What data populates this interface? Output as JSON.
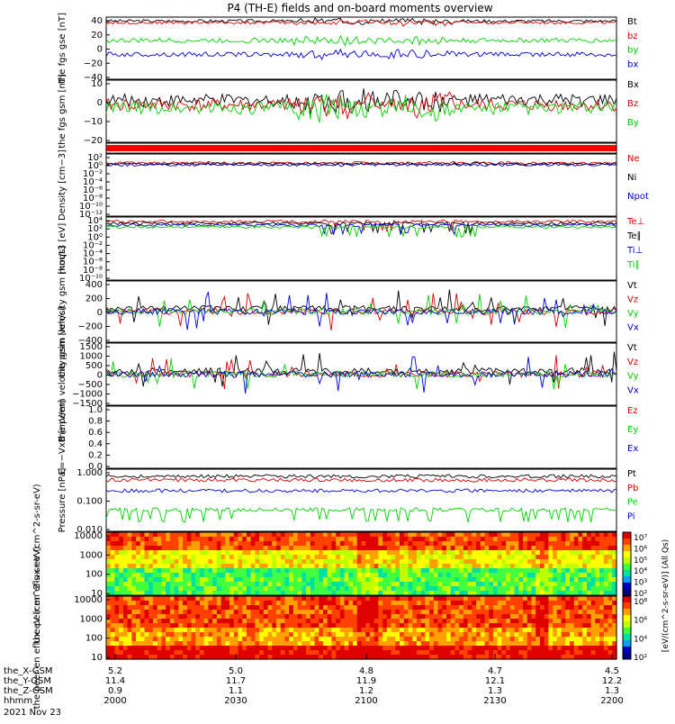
{
  "title": "P4 (TH-E) fields and on-board moments overview",
  "colors": {
    "black": "#000000",
    "red": "#d40000",
    "green": "#00d000",
    "blue": "#0000d0"
  },
  "chart_data": [
    {
      "type": "line",
      "ylabel": "the fgs gse [nT]",
      "ylim": [
        -40,
        40
      ],
      "yticks": [
        "40",
        "20",
        "0",
        "−20",
        "−40"
      ],
      "legend": [
        "Bt",
        "bz",
        "by",
        "bx"
      ],
      "series": [
        {
          "name": "Bt",
          "color": "black",
          "level": 35,
          "amp": 2
        },
        {
          "name": "bz",
          "color": "red",
          "level": 33,
          "amp": 2
        },
        {
          "name": "by",
          "color": "green",
          "level": 10,
          "amp": 3
        },
        {
          "name": "bx",
          "color": "blue",
          "level": -8,
          "amp": 3
        }
      ]
    },
    {
      "type": "line",
      "ylabel": "the fgs gsm [nT]",
      "ylim": [
        -25,
        15
      ],
      "yticks": [
        "10",
        "0",
        "−10",
        "−20"
      ],
      "legend": [
        "Bx",
        "Bz",
        "By"
      ],
      "series": [
        {
          "name": "Bx",
          "color": "black",
          "level": 2,
          "amp": 4
        },
        {
          "name": "Bz",
          "color": "red",
          "level": -1,
          "amp": 4
        },
        {
          "name": "By",
          "color": "green",
          "level": -3,
          "amp": 4
        }
      ]
    },
    {
      "type": "bar_strip",
      "note": "red quality flag bar"
    },
    {
      "type": "line",
      "ylabel": "Density [cm−3]",
      "scale": "log",
      "yticks": [
        "10²",
        "10⁰",
        "10⁻²",
        "10⁻⁴",
        "10⁻⁶",
        "10⁻⁸",
        "10⁻¹⁰",
        "10⁻¹²"
      ],
      "legend": [
        "Ne",
        "Ni",
        "Npot"
      ],
      "series": [
        {
          "name": "Ne",
          "color": "red"
        },
        {
          "name": "Ni",
          "color": "black"
        },
        {
          "name": "Npot",
          "color": "blue"
        }
      ]
    },
    {
      "type": "line",
      "ylabel": "moqt3 [eV]",
      "scale": "log",
      "yticks": [
        "10⁴",
        "10²",
        "10⁰",
        "10⁻²",
        "10⁻⁴",
        "10⁻⁶",
        "10⁻⁸",
        "10⁻¹⁰"
      ],
      "legend": [
        "Te⊥",
        "Te∥",
        "Ti⊥",
        "Ti∥"
      ],
      "series": [
        {
          "name": "Te⊥",
          "color": "red"
        },
        {
          "name": "Te∥",
          "color": "black"
        },
        {
          "name": "Ti⊥",
          "color": "blue"
        },
        {
          "name": "Ti∥",
          "color": "green"
        }
      ]
    },
    {
      "type": "line",
      "ylabel": "the peim velocity gsm [km/s]",
      "ylim": [
        -400,
        400
      ],
      "yticks": [
        "400",
        "200",
        "0",
        "−200",
        "−400"
      ],
      "legend": [
        "Vt",
        "Vz",
        "Vy",
        "Vx"
      ],
      "series": [
        {
          "name": "Vt",
          "color": "black"
        },
        {
          "name": "Vz",
          "color": "red"
        },
        {
          "name": "Vy",
          "color": "green"
        },
        {
          "name": "Vx",
          "color": "blue"
        }
      ]
    },
    {
      "type": "line",
      "ylabel": "the peem velocity gsm [km/s]",
      "ylim": [
        -1500,
        1500
      ],
      "yticks": [
        "1500",
        "1000",
        "500",
        "0",
        "−500",
        "−1000",
        "−1500"
      ],
      "legend": [
        "Vt",
        "Vz",
        "Vy",
        "Vx"
      ],
      "series": [
        {
          "name": "Vt",
          "color": "black"
        },
        {
          "name": "Vz",
          "color": "red"
        },
        {
          "name": "Vy",
          "color": "green"
        },
        {
          "name": "Vx",
          "color": "blue"
        }
      ]
    },
    {
      "type": "line",
      "ylabel": "E=−VxB [mV/m]",
      "ylim": [
        0,
        1
      ],
      "yticks": [
        "1.0",
        "0.8",
        "0.6",
        "0.4",
        "0.2",
        "0.0"
      ],
      "legend": [
        "Ez",
        "Ey",
        "Ex"
      ],
      "series": [
        {
          "name": "Ez",
          "color": "red"
        },
        {
          "name": "Ey",
          "color": "green"
        },
        {
          "name": "Ex",
          "color": "blue"
        }
      ]
    },
    {
      "type": "line",
      "ylabel": "Pressure [nPa]",
      "scale": "log",
      "yticks": [
        "1.000",
        "0.100",
        "0.010"
      ],
      "legend": [
        "Pt",
        "Pb",
        "Pe",
        "Pi"
      ],
      "series": [
        {
          "name": "Pt",
          "color": "black"
        },
        {
          "name": "Pb",
          "color": "red"
        },
        {
          "name": "Pe",
          "color": "green"
        },
        {
          "name": "Pi",
          "color": "blue"
        }
      ]
    },
    {
      "type": "heatmap",
      "ylabel": "the peir en eflux eV (cm^2-s-sr-eV)",
      "scale": "log",
      "yticks": [
        "10000",
        "1000",
        "100",
        "10"
      ],
      "colorbar": [
        "10⁷",
        "10⁶",
        "10⁵",
        "10⁴",
        "10³",
        "10²"
      ]
    },
    {
      "type": "heatmap",
      "ylabel": "the peer en eflux eV (cm^2-s-sr-eV)",
      "scale": "log",
      "yticks": [
        "10000",
        "1000",
        "100",
        "10"
      ],
      "colorbar": [
        "10⁸",
        "10⁶",
        "10⁴",
        "10²"
      ],
      "colorbar_label": "[eV/(cm^2-s-sr-eV)] (All Qs)"
    }
  ],
  "xaxis": {
    "rows": [
      {
        "label": "the_X-GSM",
        "values": [
          "5.2",
          "5.0",
          "4.8",
          "4.7",
          "4.5"
        ]
      },
      {
        "label": "the_Y-GSM",
        "values": [
          "11.4",
          "11.7",
          "11.9",
          "12.1",
          "12.2"
        ]
      },
      {
        "label": "the_Z-GSM",
        "values": [
          "0.9",
          "1.1",
          "1.2",
          "1.3",
          "1.3"
        ]
      },
      {
        "label": "hhmm",
        "values": [
          "2000",
          "2030",
          "2100",
          "2130",
          "2200"
        ]
      }
    ],
    "date": "2021 Nov 23"
  }
}
